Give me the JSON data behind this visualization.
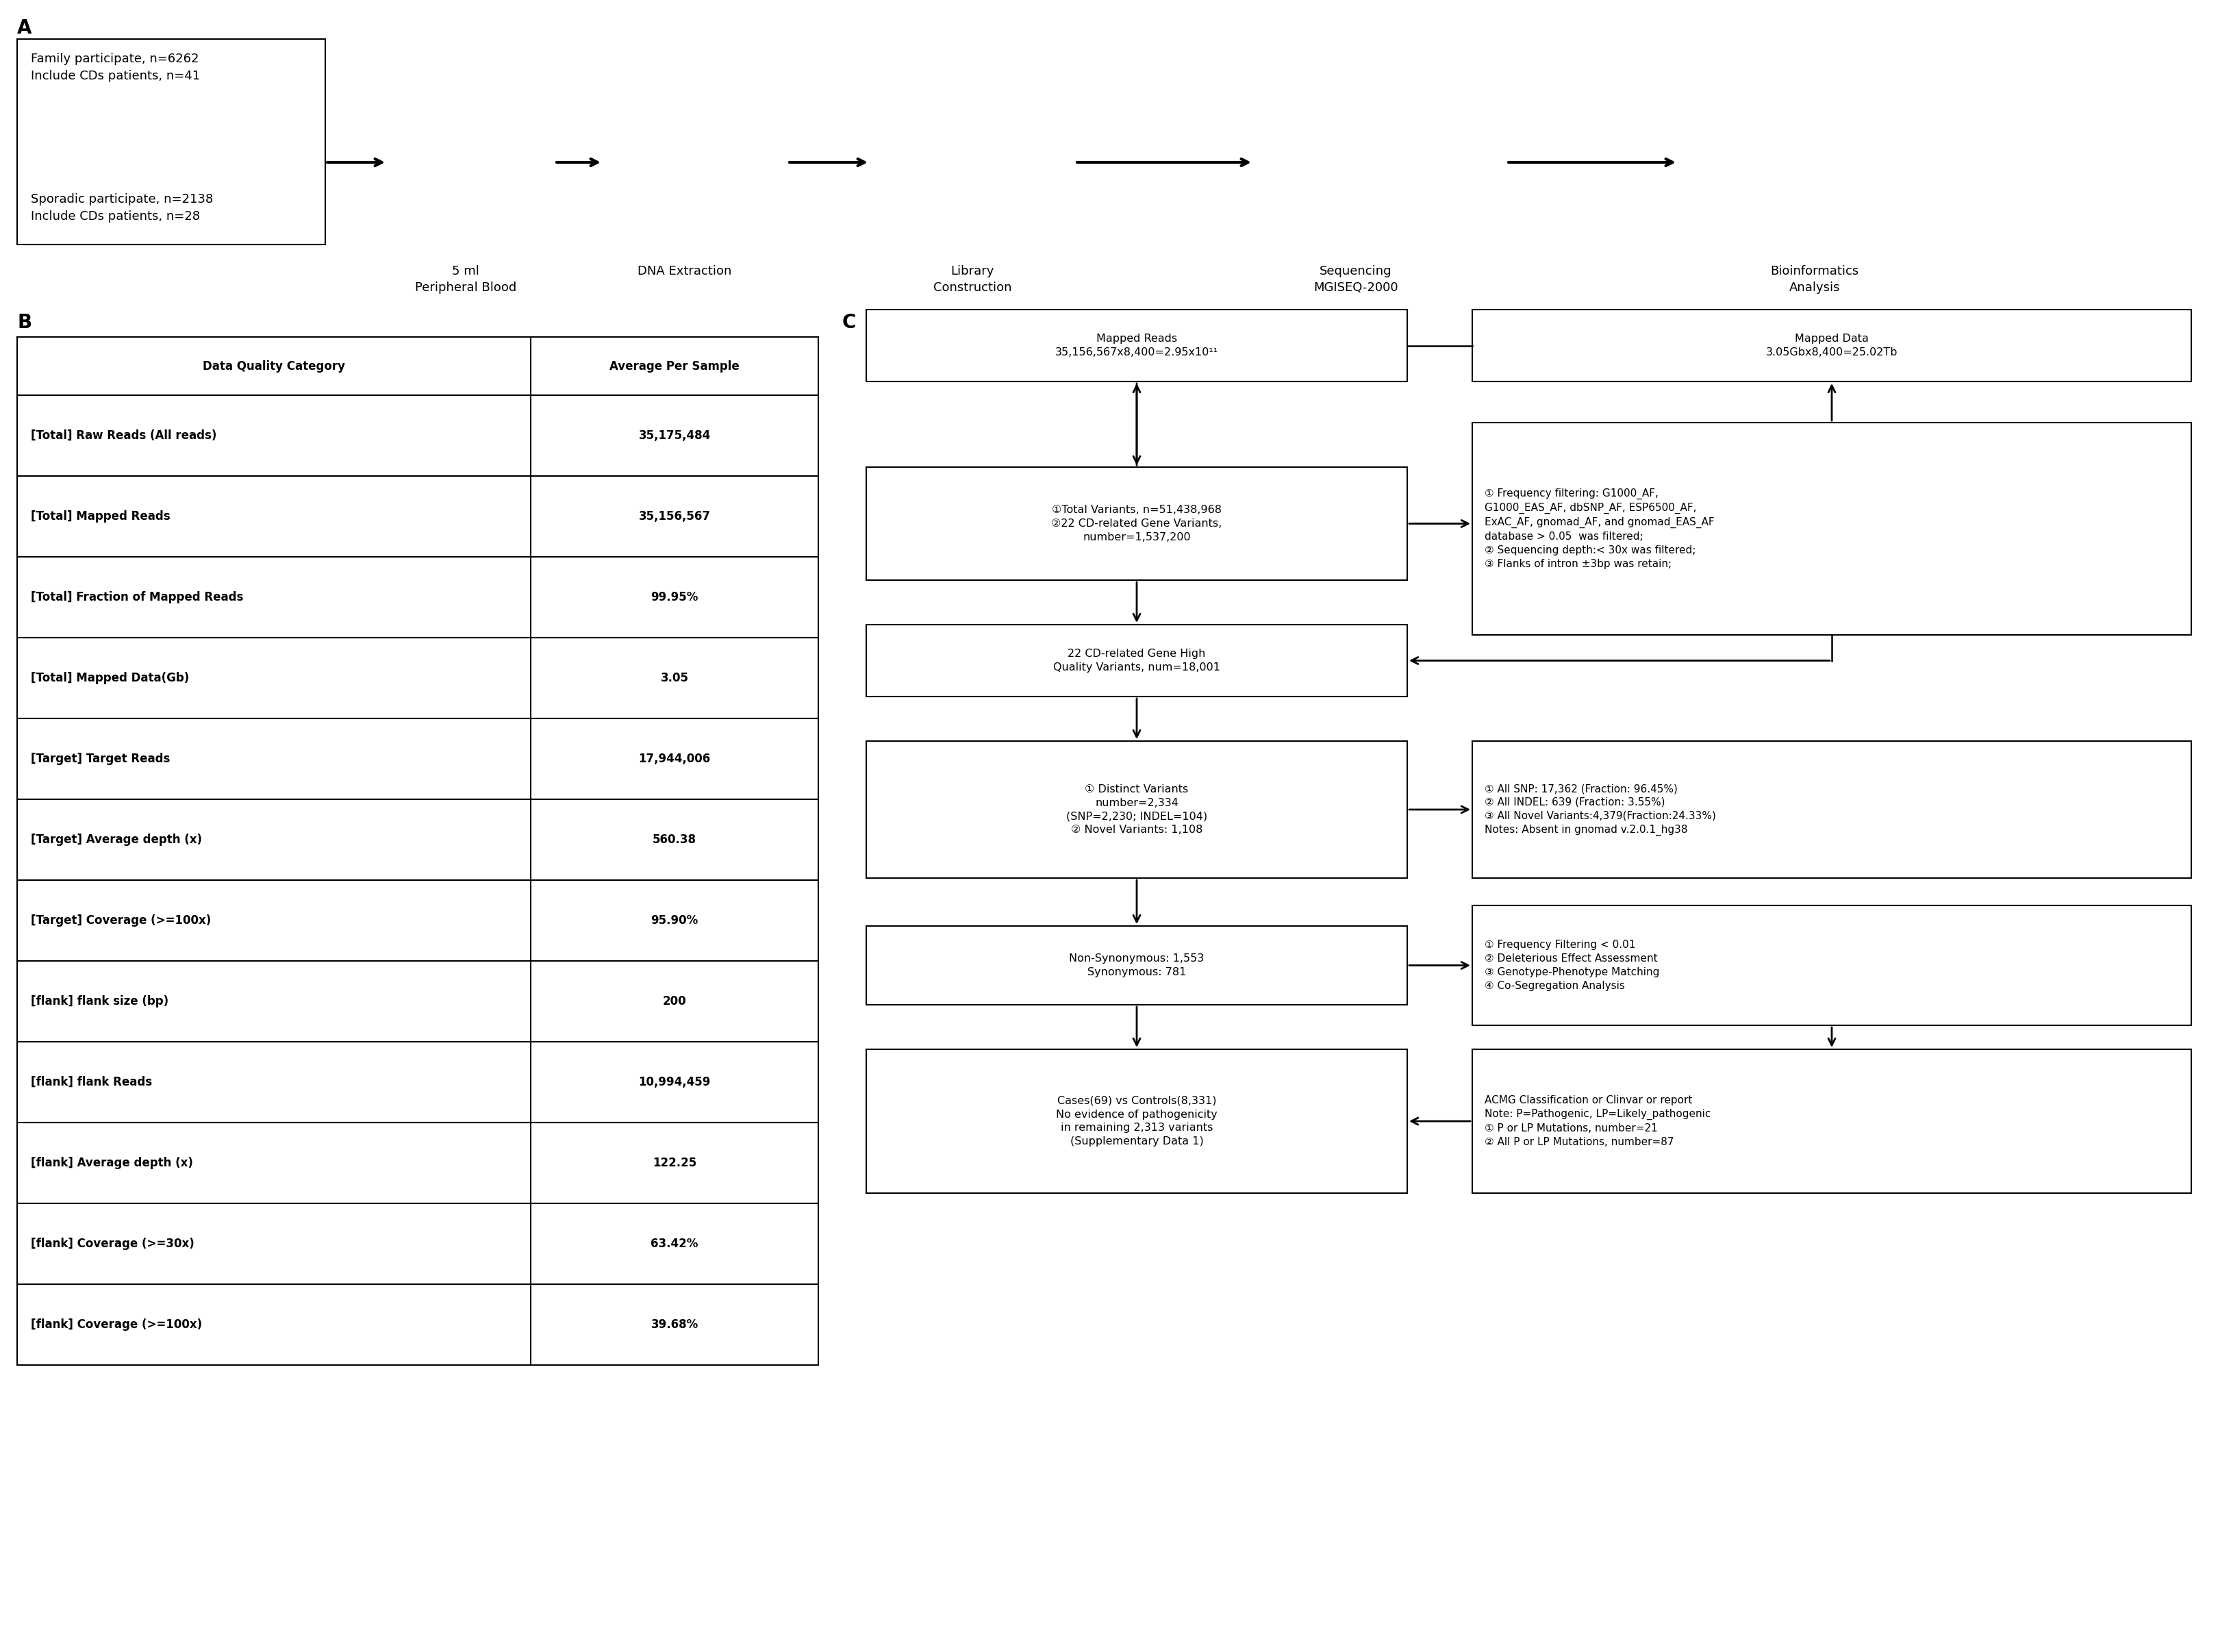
{
  "panel_A_text_top": "Family participate, n=6262\nInclude CDs patients, n=41",
  "panel_A_text_bottom": "Sporadic participate, n=2138\nInclude CDs patients, n=28",
  "pipeline_labels": [
    "5 ml\nPeripheral Blood",
    "DNA Extraction",
    "Library\nConstruction",
    "Sequencing\nMGISEQ-2000",
    "Bioinformatics\nAnalysis"
  ],
  "table_headers": [
    "Data Quality Category",
    "Average Per Sample"
  ],
  "table_rows": [
    [
      "[Total] Raw Reads (All reads)",
      "35,175,484"
    ],
    [
      "[Total] Mapped Reads",
      "35,156,567"
    ],
    [
      "[Total] Fraction of Mapped Reads",
      "99.95%"
    ],
    [
      "[Total] Mapped Data(Gb)",
      "3.05"
    ],
    [
      "[Target] Target Reads",
      "17,944,006"
    ],
    [
      "[Target] Average depth (x)",
      "560.38"
    ],
    [
      "[Target] Coverage (>=100x)",
      "95.90%"
    ],
    [
      "[flank] flank size (bp)",
      "200"
    ],
    [
      "[flank] flank Reads",
      "10,994,459"
    ],
    [
      "[flank] Average depth (x)",
      "122.25"
    ],
    [
      "[flank] Coverage (>=30x)",
      "63.42%"
    ],
    [
      "[flank] Coverage (>=100x)",
      "39.68%"
    ]
  ],
  "flow_box1_left": "Mapped Reads\n35,156,567x8,400=2.95x10¹¹",
  "flow_box1_right": "Mapped Data\n3.05Gbx8,400=25.02Tb",
  "flow_box2_left": "①Total Variants, n=51,438,968\n②22 CD-related Gene Variants,\nnumber=1,537,200",
  "flow_box2_right": "① Frequency filtering: G1000_AF,\nG1000_EAS_AF, dbSNP_AF, ESP6500_AF,\nExAC_AF, gnomad_AF, and gnomad_EAS_AF\ndatabase > 0.05  was filtered;\n② Sequencing depth:< 30x was filtered;\n③ Flanks of intron ±3bp was retain;",
  "flow_box3_left": "22 CD-related Gene High\nQuality Variants, num=18,001",
  "flow_box4_left": "① Distinct Variants\nnumber=2,334\n(SNP=2,230; INDEL=104)\n② Novel Variants: 1,108",
  "flow_box4_right": "① All SNP: 17,362 (Fraction: 96.45%)\n② All INDEL: 639 (Fraction: 3.55%)\n③ All Novel Variants:4,379(Fraction:24.33%)\nNotes: Absent in gnomad v.2.0.1_hg38",
  "flow_box5_left": "Non-Synonymous: 1,553\nSynonymous: 781",
  "flow_box5_right": "① Frequency Filtering < 0.01\n② Deleterious Effect Assessment\n③ Genotype-Phenotype Matching\n④ Co-Segregation Analysis",
  "flow_box6_left": "Cases(69) vs Controls(8,331)\nNo evidence of pathogenicity\nin remaining 2,313 variants\n(Supplementary Data 1)",
  "flow_box6_right": "ACMG Classification or Clinvar or report\nNote: P=Pathogenic, LP=Likely_pathogenic\n① P or LP Mutations, number=21\n② All P or LP Mutations, number=87",
  "bg_color": "#ffffff",
  "text_color": "#000000"
}
